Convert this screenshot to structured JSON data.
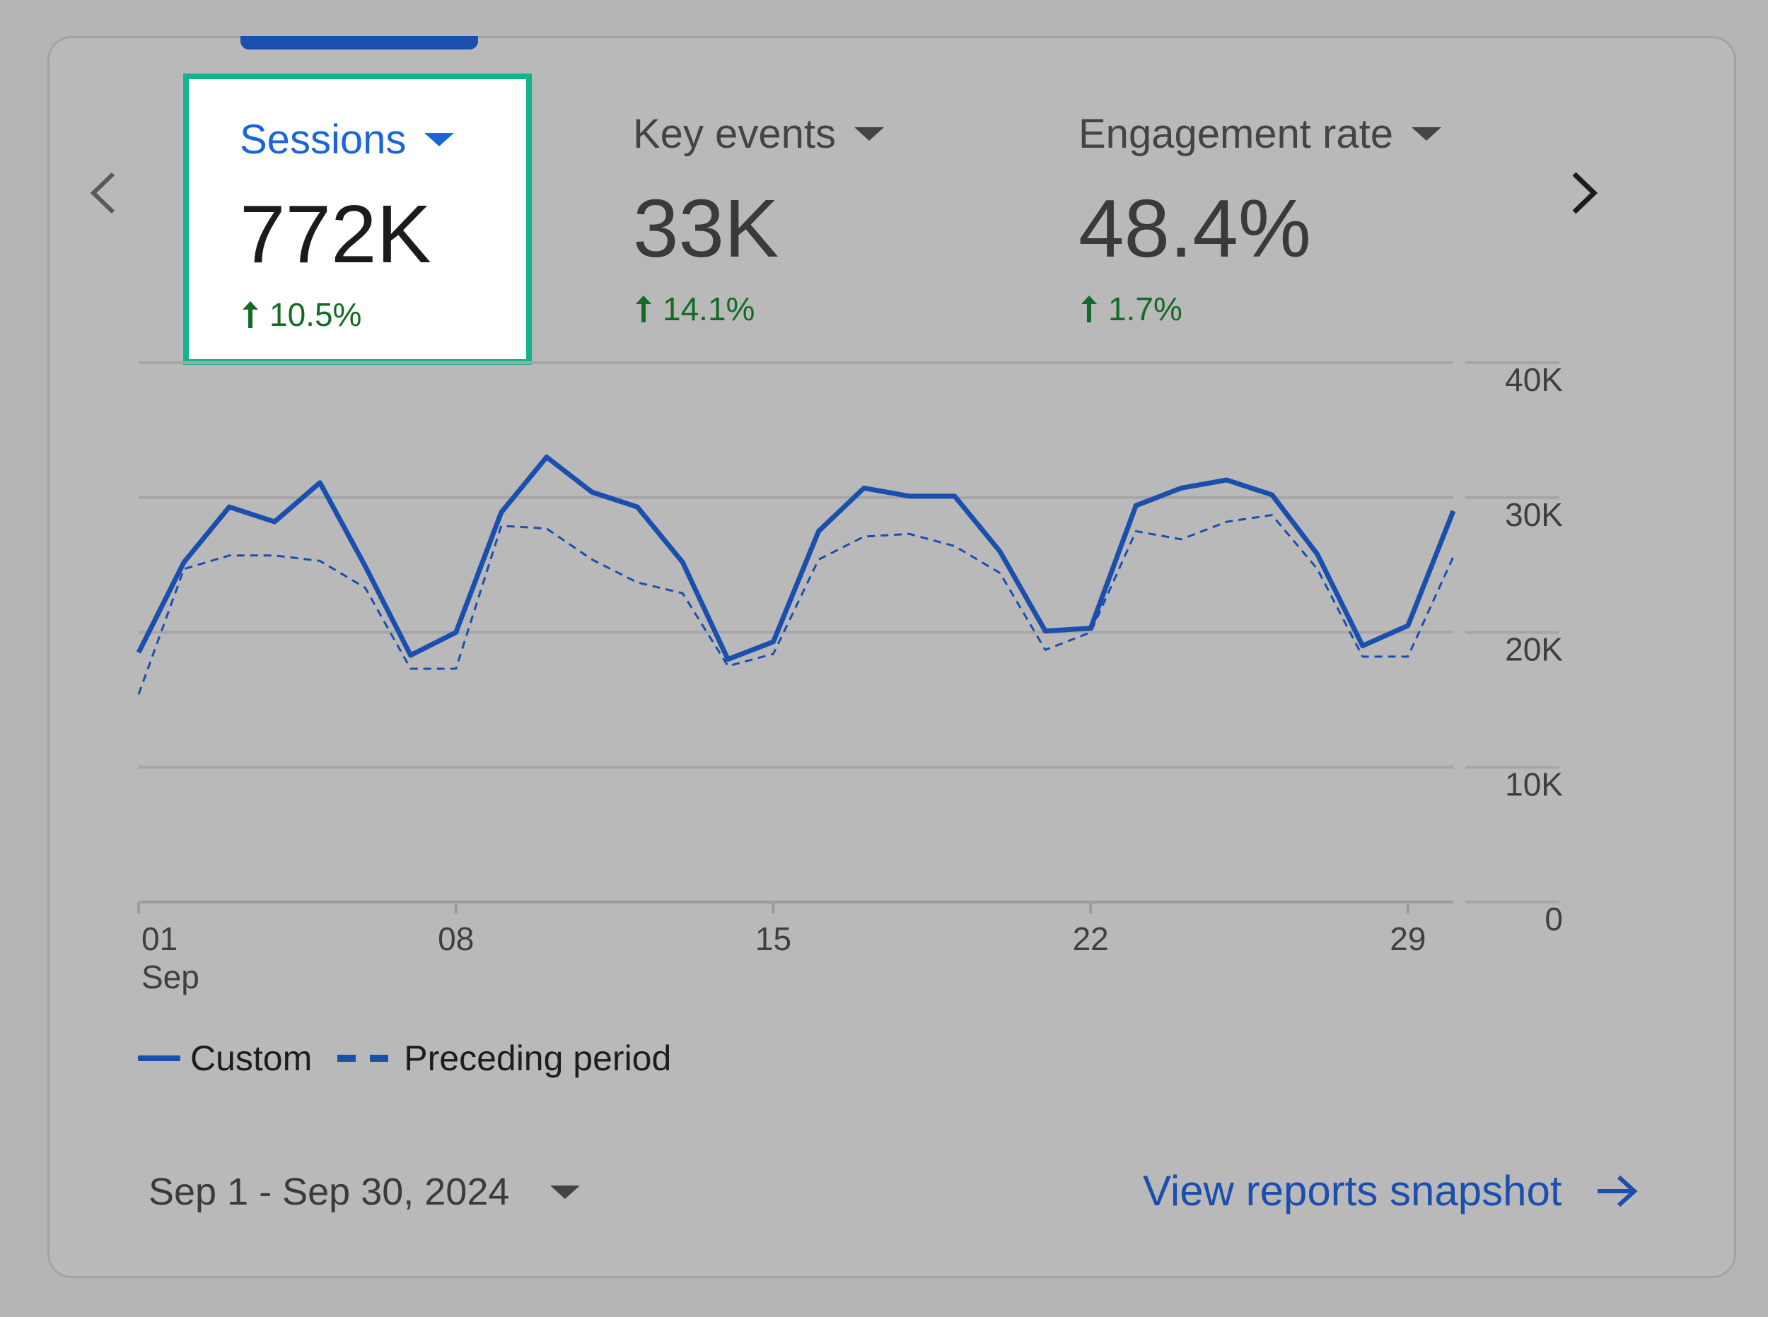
{
  "metrics": [
    {
      "label": "Sessions",
      "value": "772K",
      "change": "10.5%",
      "selected": true
    },
    {
      "label": "Key events",
      "value": "33K",
      "change": "14.1%",
      "selected": false
    },
    {
      "label": "Engagement rate",
      "value": "48.4%",
      "change": "1.7%",
      "selected": false
    }
  ],
  "footer": {
    "date_range": "Sep 1 - Sep 30, 2024",
    "view_link": "View reports snapshot"
  },
  "colors": {
    "accent": "#1a4fae",
    "selected_label": "#1a66d6",
    "positive": "#156b26",
    "highlight_border": "#13b38e"
  },
  "icons": {
    "prev": "chevron-left-icon",
    "next": "chevron-right-icon",
    "dropdown": "caret-down-icon",
    "link": "arrow-right-icon",
    "trend": "arrow-up-icon"
  },
  "chart_data": {
    "type": "line",
    "x": [
      1,
      2,
      3,
      4,
      5,
      6,
      7,
      8,
      9,
      10,
      11,
      12,
      13,
      14,
      15,
      16,
      17,
      18,
      19,
      20,
      21,
      22,
      23,
      24,
      25,
      26,
      27,
      28,
      29,
      30
    ],
    "x_ticks": [
      {
        "day": 1,
        "label": "01",
        "sublabel": "Sep"
      },
      {
        "day": 8,
        "label": "08"
      },
      {
        "day": 15,
        "label": "15"
      },
      {
        "day": 22,
        "label": "22"
      },
      {
        "day": 29,
        "label": "29"
      }
    ],
    "y_ticks": [
      {
        "value": 0,
        "label": "0"
      },
      {
        "value": 10000,
        "label": "10K"
      },
      {
        "value": 20000,
        "label": "20K"
      },
      {
        "value": 30000,
        "label": "30K"
      },
      {
        "value": 40000,
        "label": "40K"
      }
    ],
    "ylim": [
      0,
      40000
    ],
    "grid": true,
    "legend_position": "bottom-left",
    "series": [
      {
        "name": "Custom",
        "style": "solid",
        "values": [
          18500,
          25200,
          29300,
          28200,
          31100,
          24900,
          18300,
          20000,
          28900,
          33000,
          30400,
          29300,
          25200,
          18000,
          19300,
          27500,
          30700,
          30100,
          30100,
          26000,
          20100,
          20300,
          29400,
          30700,
          31300,
          30200,
          25800,
          19000,
          20500,
          29000
        ]
      },
      {
        "name": "Preceding period",
        "style": "dashed",
        "values": [
          15400,
          24700,
          25700,
          25700,
          25300,
          23300,
          17300,
          17300,
          27900,
          27700,
          25400,
          23700,
          22900,
          17500,
          18400,
          25400,
          27100,
          27300,
          26400,
          24400,
          18700,
          20000,
          27500,
          26900,
          28200,
          28700,
          24700,
          18200,
          18200,
          25600
        ]
      }
    ]
  }
}
